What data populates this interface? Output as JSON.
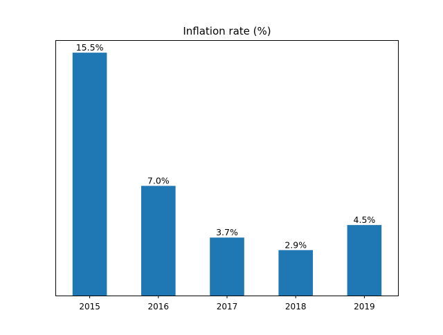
{
  "chart_data": {
    "type": "bar",
    "title": "Inflation rate (%)",
    "xlabel": "",
    "ylabel": "",
    "categories": [
      "2015",
      "2016",
      "2017",
      "2018",
      "2019"
    ],
    "values": [
      15.5,
      7.0,
      3.7,
      2.9,
      4.5
    ],
    "data_labels": [
      "15.5%",
      "7.0%",
      "3.7%",
      "2.9%",
      "4.5%"
    ],
    "ylim": [
      0,
      16.3
    ],
    "y_axis_visible": false,
    "grid": false,
    "legend": "none",
    "bar_color": "#1f77b4"
  }
}
